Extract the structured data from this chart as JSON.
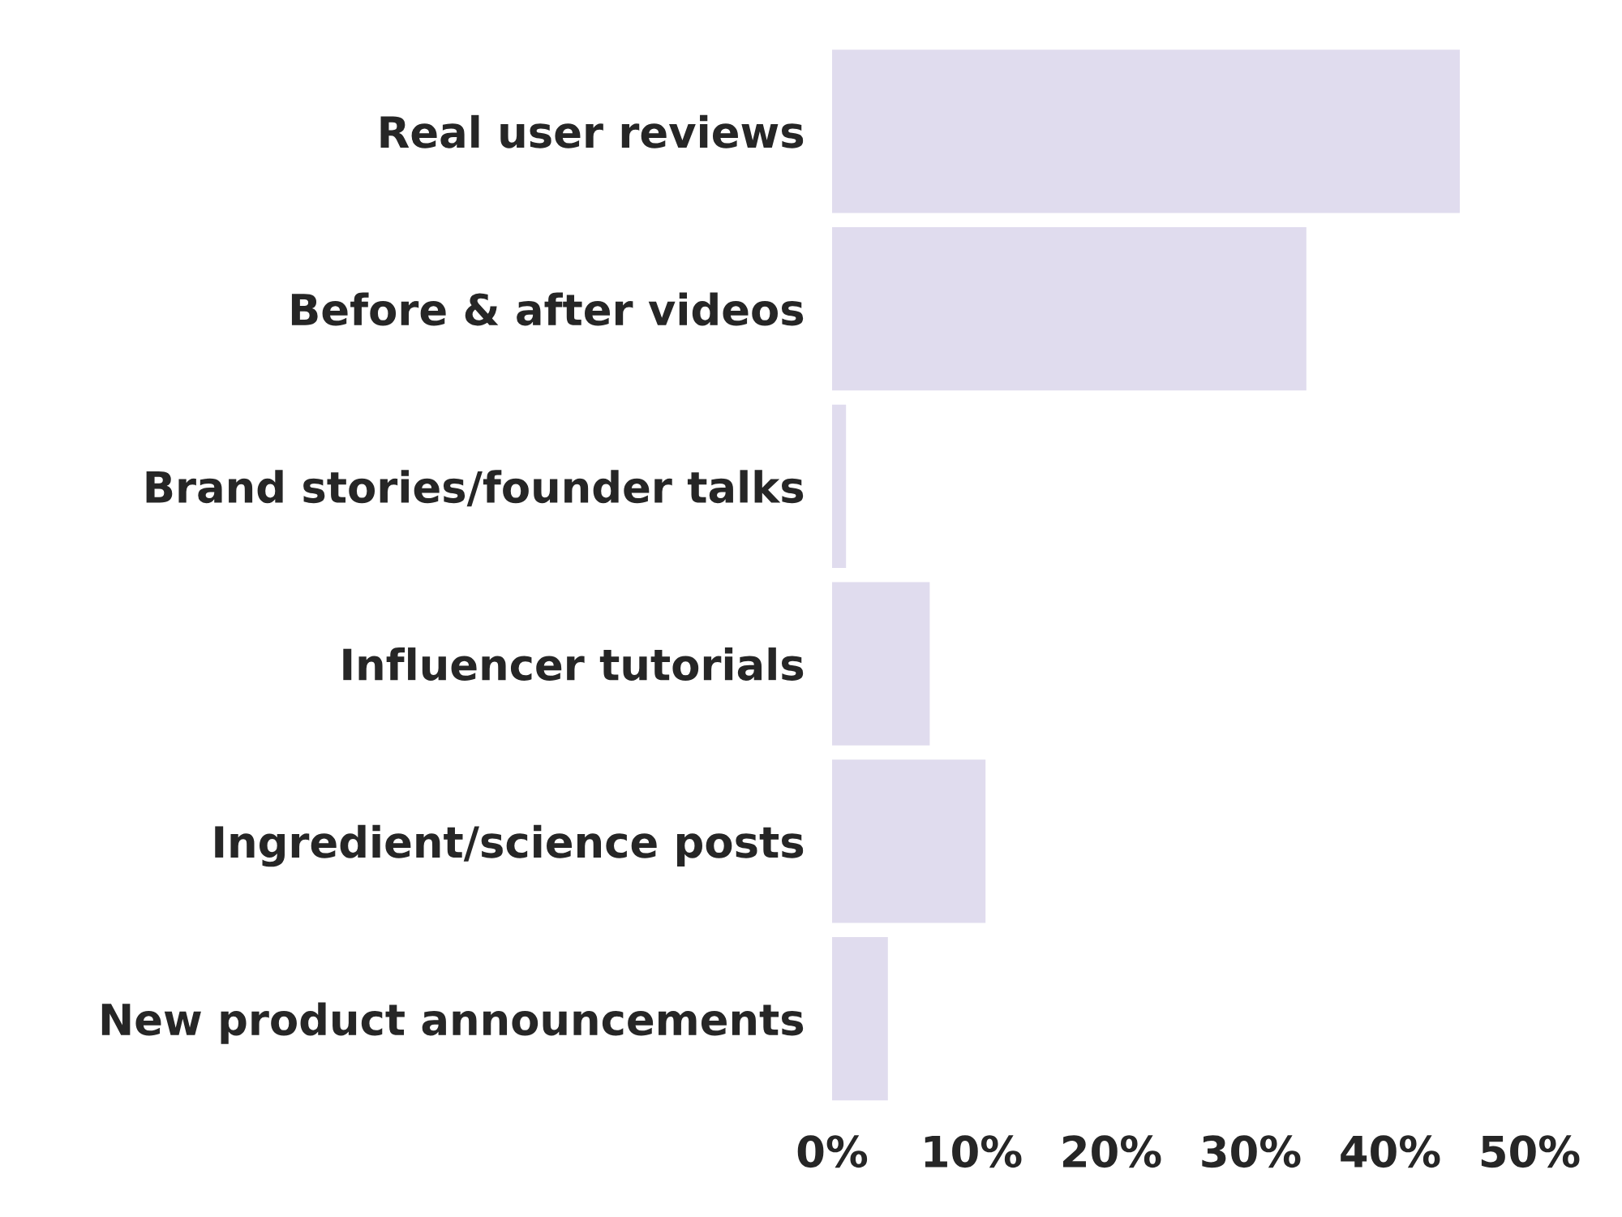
{
  "chart_data": {
    "type": "bar",
    "orientation": "horizontal",
    "categories": [
      "Real user reviews",
      "Before & after videos",
      "Brand stories/founder talks",
      "Influencer tutorials",
      "Ingredient/science posts",
      "New product announcements"
    ],
    "values": [
      45,
      34,
      1,
      7,
      11,
      4
    ],
    "color": "#e0dcee",
    "xlim": [
      0,
      50
    ],
    "xticks": [
      {
        "value": 0,
        "label": "0%"
      },
      {
        "value": 10,
        "label": "10%"
      },
      {
        "value": 20,
        "label": "20%"
      },
      {
        "value": 30,
        "label": "30%"
      },
      {
        "value": 40,
        "label": "40%"
      },
      {
        "value": 50,
        "label": "50%"
      }
    ],
    "grid": false
  }
}
